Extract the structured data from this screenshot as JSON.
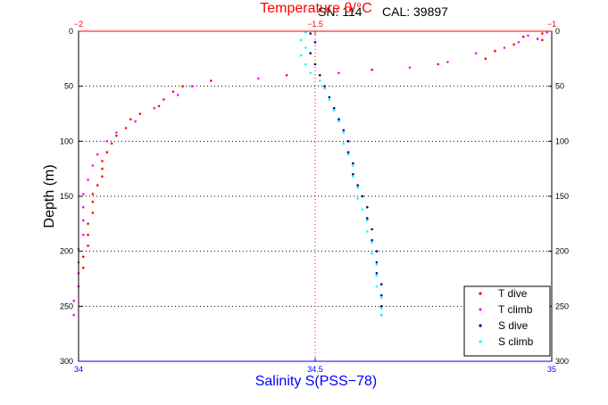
{
  "header": {
    "serial": "SN: 114",
    "calibration": "CAL: 39897"
  },
  "chart_data": {
    "type": "scatter",
    "title": "",
    "ylabel": "Depth (m)",
    "ylim": [
      300,
      0
    ],
    "yticks": [
      "0",
      "50",
      "100",
      "150",
      "200",
      "250",
      "300"
    ],
    "y_ticks_values": [
      0,
      50,
      100,
      150,
      200,
      250,
      300
    ],
    "top_axis": {
      "label": "Temperature θ/°C",
      "range": [
        -2,
        -1
      ],
      "ticks": [
        "−2",
        "−1.5",
        "−1"
      ],
      "ticks_values": [
        -2,
        -1.5,
        -1
      ],
      "color": "#ff0000"
    },
    "bottom_axis": {
      "label": "Salinity S(PSS−78)",
      "range": [
        34,
        35
      ],
      "ticks": [
        "34",
        "34.5",
        "35"
      ],
      "ticks_values": [
        34,
        34.5,
        35
      ],
      "color": "#0000ff"
    },
    "grid": "horizontal dotted at depth ticks; vertical dotted at center",
    "legend_position": "bottom-right",
    "series": [
      {
        "name": "T dive",
        "axis": "top",
        "color": "#ff0000",
        "points": [
          [
            -1.02,
            2
          ],
          [
            -1.06,
            5
          ],
          [
            -1.02,
            8
          ],
          [
            -1.08,
            12
          ],
          [
            -1.12,
            18
          ],
          [
            -1.14,
            25
          ],
          [
            -1.24,
            30
          ],
          [
            -1.38,
            35
          ],
          [
            -1.56,
            40
          ],
          [
            -1.72,
            45
          ],
          [
            -1.78,
            50
          ],
          [
            -1.8,
            55
          ],
          [
            -1.82,
            62
          ],
          [
            -1.83,
            68
          ],
          [
            -1.87,
            75
          ],
          [
            -1.89,
            80
          ],
          [
            -1.9,
            88
          ],
          [
            -1.92,
            95
          ],
          [
            -1.93,
            102
          ],
          [
            -1.94,
            110
          ],
          [
            -1.95,
            118
          ],
          [
            -1.95,
            125
          ],
          [
            -1.95,
            132
          ],
          [
            -1.96,
            140
          ],
          [
            -1.97,
            148
          ],
          [
            -1.97,
            155
          ],
          [
            -1.97,
            165
          ],
          [
            -1.98,
            175
          ],
          [
            -1.98,
            185
          ],
          [
            -1.98,
            195
          ],
          [
            -1.99,
            205
          ],
          [
            -1.99,
            215
          ]
        ]
      },
      {
        "name": "T climb",
        "axis": "top",
        "color": "#ff00ff",
        "points": [
          [
            -1.01,
            1
          ],
          [
            -1.05,
            4
          ],
          [
            -1.03,
            7
          ],
          [
            -1.07,
            10
          ],
          [
            -1.1,
            15
          ],
          [
            -1.16,
            20
          ],
          [
            -1.22,
            28
          ],
          [
            -1.3,
            33
          ],
          [
            -1.45,
            38
          ],
          [
            -1.62,
            43
          ],
          [
            -1.76,
            50
          ],
          [
            -1.79,
            58
          ],
          [
            -1.84,
            70
          ],
          [
            -1.88,
            82
          ],
          [
            -1.92,
            92
          ],
          [
            -1.94,
            100
          ],
          [
            -1.96,
            112
          ],
          [
            -1.97,
            122
          ],
          [
            -1.98,
            135
          ],
          [
            -1.99,
            148
          ],
          [
            -1.99,
            160
          ],
          [
            -1.99,
            172
          ],
          [
            -1.99,
            185
          ],
          [
            -2.0,
            198
          ],
          [
            -2.0,
            210
          ],
          [
            -2.0,
            220
          ],
          [
            -2.0,
            232
          ],
          [
            -2.01,
            245
          ],
          [
            -2.01,
            258
          ]
        ]
      },
      {
        "name": "S dive",
        "axis": "bottom",
        "color": "#00008b",
        "points": [
          [
            34.49,
            2
          ],
          [
            34.5,
            10
          ],
          [
            34.49,
            20
          ],
          [
            34.5,
            30
          ],
          [
            34.51,
            40
          ],
          [
            34.52,
            50
          ],
          [
            34.53,
            60
          ],
          [
            34.54,
            70
          ],
          [
            34.55,
            80
          ],
          [
            34.56,
            90
          ],
          [
            34.57,
            100
          ],
          [
            34.57,
            110
          ],
          [
            34.58,
            120
          ],
          [
            34.58,
            130
          ],
          [
            34.59,
            140
          ],
          [
            34.6,
            150
          ],
          [
            34.61,
            160
          ],
          [
            34.61,
            170
          ],
          [
            34.62,
            180
          ],
          [
            34.62,
            190
          ],
          [
            34.63,
            200
          ],
          [
            34.63,
            210
          ],
          [
            34.63,
            220
          ],
          [
            34.64,
            230
          ],
          [
            34.64,
            240
          ],
          [
            34.64,
            250
          ],
          [
            34.64,
            258
          ]
        ]
      },
      {
        "name": "S climb",
        "axis": "bottom",
        "color": "#00ffff",
        "points": [
          [
            34.48,
            1
          ],
          [
            34.47,
            8
          ],
          [
            34.48,
            15
          ],
          [
            34.47,
            22
          ],
          [
            34.48,
            30
          ],
          [
            34.49,
            38
          ],
          [
            34.51,
            45
          ],
          [
            34.52,
            52
          ],
          [
            34.53,
            62
          ],
          [
            34.54,
            72
          ],
          [
            34.55,
            82
          ],
          [
            34.56,
            92
          ],
          [
            34.56,
            102
          ],
          [
            34.57,
            112
          ],
          [
            34.58,
            122
          ],
          [
            34.58,
            132
          ],
          [
            34.59,
            142
          ],
          [
            34.59,
            152
          ],
          [
            34.6,
            162
          ],
          [
            34.61,
            172
          ],
          [
            34.61,
            182
          ],
          [
            34.62,
            192
          ],
          [
            34.62,
            202
          ],
          [
            34.63,
            212
          ],
          [
            34.63,
            222
          ],
          [
            34.63,
            232
          ],
          [
            34.64,
            242
          ],
          [
            34.64,
            252
          ],
          [
            34.64,
            258
          ]
        ]
      }
    ]
  }
}
